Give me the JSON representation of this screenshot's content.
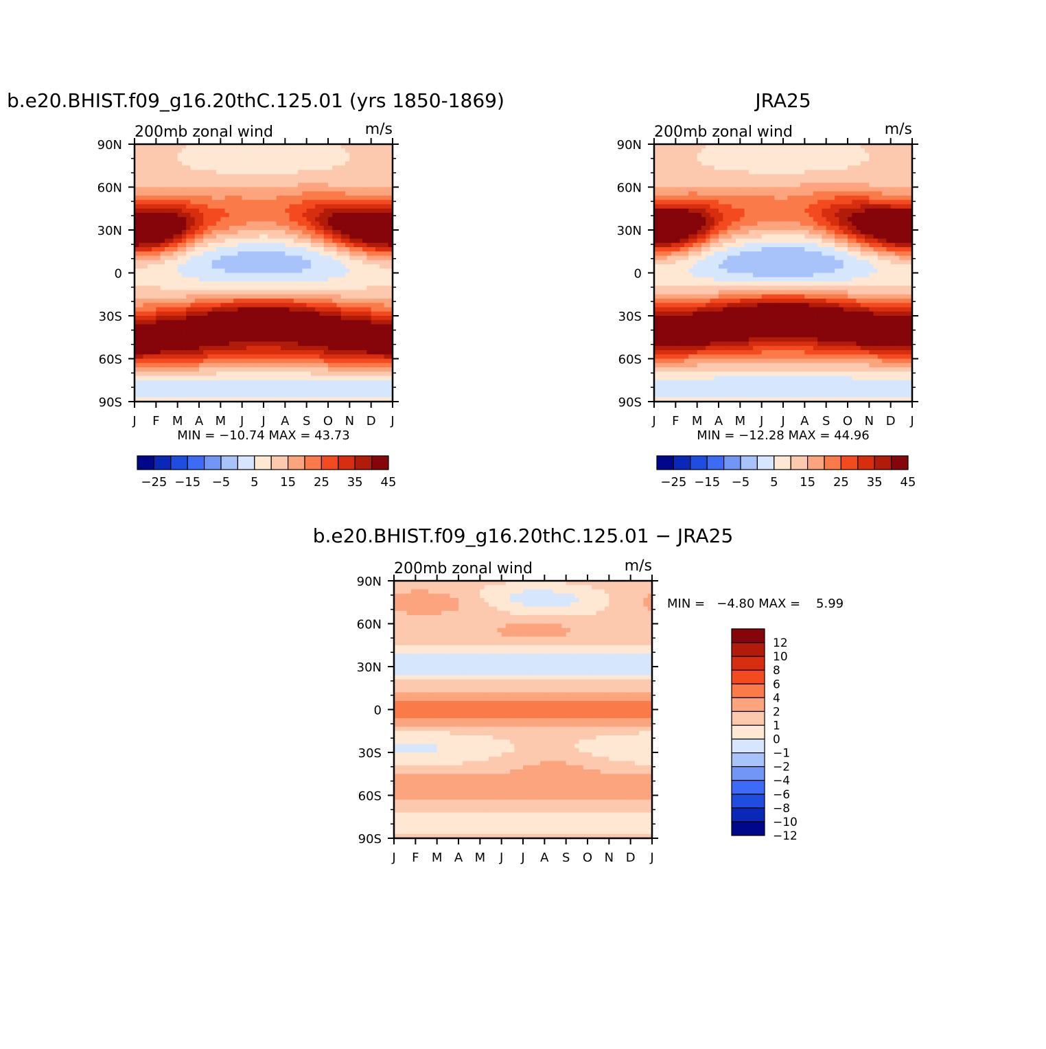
{
  "chart_data": [
    {
      "type": "heatmap",
      "title": "b.e20.BHIST.f09_g16.20thC.125.01 (yrs 1850-1869)",
      "left_label": "200mb zonal wind",
      "right_label": "m/s",
      "x_ticks": [
        "J",
        "F",
        "M",
        "A",
        "M",
        "J",
        "J",
        "A",
        "S",
        "O",
        "N",
        "D",
        "J"
      ],
      "y_ticks": [
        "90N",
        "60N",
        "30N",
        "0",
        "30S",
        "60S",
        "90S"
      ],
      "stats": "MIN = −10.74 MAX =  43.73",
      "min": -10.74,
      "max": 43.73,
      "levels": [
        -30,
        -25,
        -20,
        -15,
        -10,
        -5,
        0,
        5,
        10,
        15,
        20,
        25,
        30,
        35,
        40,
        45
      ],
      "colorbar_labels": [
        "−25",
        "−15",
        "−5",
        "5",
        "15",
        "25",
        "35",
        "45"
      ],
      "jets": {
        "nh_lat": 30,
        "sh_lat": -33,
        "sh2_lat": -50,
        "eq_min": -8
      }
    },
    {
      "type": "heatmap",
      "title": "JRA25",
      "left_label": "200mb zonal wind",
      "right_label": "m/s",
      "x_ticks": [
        "J",
        "F",
        "M",
        "A",
        "M",
        "J",
        "J",
        "A",
        "S",
        "O",
        "N",
        "D",
        "J"
      ],
      "y_ticks": [
        "90N",
        "60N",
        "30N",
        "0",
        "30S",
        "60S",
        "90S"
      ],
      "stats": "MIN = −12.28 MAX =  44.96",
      "min": -12.28,
      "max": 44.96,
      "levels": [
        -30,
        -25,
        -20,
        -15,
        -10,
        -5,
        0,
        5,
        10,
        15,
        20,
        25,
        30,
        35,
        40,
        45
      ],
      "colorbar_labels": [
        "−25",
        "−15",
        "−5",
        "5",
        "15",
        "25",
        "35",
        "45"
      ],
      "jets": {
        "nh_lat": 31,
        "sh_lat": -30,
        "sh2_lat": -45,
        "eq_min": -10
      }
    },
    {
      "type": "heatmap",
      "title": "b.e20.BHIST.f09_g16.20thC.125.01 − JRA25",
      "left_label": "200mb zonal wind",
      "right_label": "m/s",
      "x_ticks": [
        "J",
        "F",
        "M",
        "A",
        "M",
        "J",
        "J",
        "A",
        "S",
        "O",
        "N",
        "D",
        "J"
      ],
      "y_ticks": [
        "90N",
        "60N",
        "30N",
        "0",
        "30S",
        "60S",
        "90S"
      ],
      "stats": "MIN =   −4.80 MAX =    5.99",
      "min": -4.8,
      "max": 5.99,
      "levels": [
        -12,
        -10,
        -8,
        -6,
        -4,
        -2,
        -1,
        0,
        1,
        2,
        4,
        6,
        8,
        10,
        12
      ],
      "colorbar_labels": [
        "12",
        "10",
        "8",
        "6",
        "4",
        "2",
        "1",
        "0",
        "−1",
        "−2",
        "−4",
        "−6",
        "−8",
        "−10",
        "−12"
      ]
    }
  ],
  "palette": [
    "#00078a",
    "#0a28b8",
    "#1f4de0",
    "#3c6cf5",
    "#7196f6",
    "#a8c2fa",
    "#d6e6fd",
    "#fee8d3",
    "#fcc8ae",
    "#fba47e",
    "#fa7a49",
    "#f44a1f",
    "#d72e10",
    "#b11b0a",
    "#85050a"
  ]
}
